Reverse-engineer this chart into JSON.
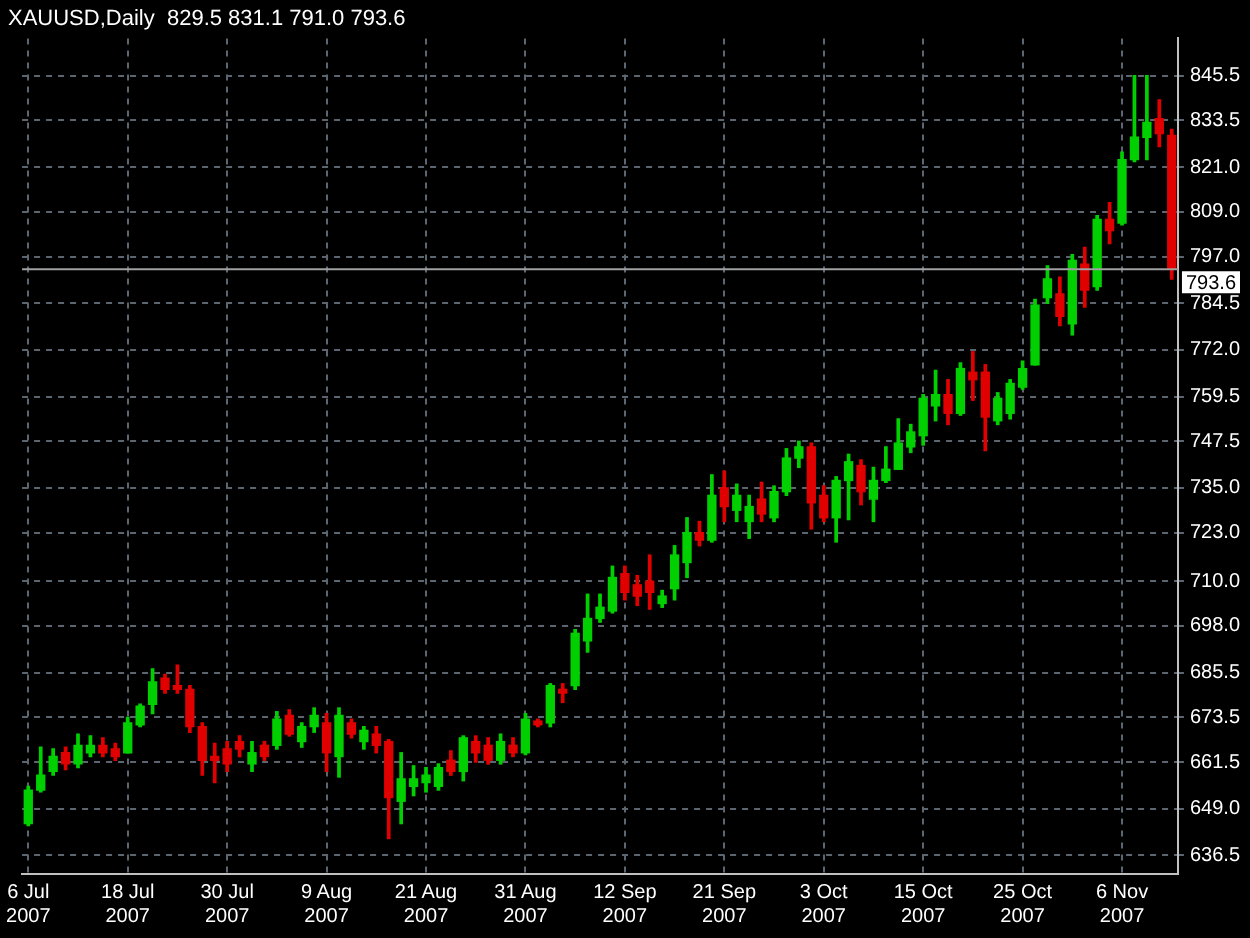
{
  "chart_data": {
    "type": "candlestick",
    "title": "XAUUSD,Daily  829.5 831.1 791.0 793.6",
    "categories": [
      "6 Jul 2007",
      null,
      null,
      null,
      null,
      null,
      null,
      null,
      "18 Jul 2007",
      null,
      null,
      null,
      null,
      null,
      null,
      null,
      "30 Jul 2007",
      null,
      null,
      null,
      null,
      null,
      null,
      null,
      "9 Aug 2007",
      null,
      null,
      null,
      null,
      null,
      null,
      null,
      "21 Aug 2007",
      null,
      null,
      null,
      null,
      null,
      null,
      null,
      "31 Aug 2007",
      null,
      null,
      null,
      null,
      null,
      null,
      null,
      "12 Sep 2007",
      null,
      null,
      null,
      null,
      null,
      null,
      null,
      "21 Sep 2007",
      null,
      null,
      null,
      null,
      null,
      null,
      null,
      "3 Oct 2007",
      null,
      null,
      null,
      null,
      null,
      null,
      null,
      "15 Oct 2007",
      null,
      null,
      null,
      null,
      null,
      null,
      null,
      "25 Oct 2007",
      null,
      null,
      null,
      null,
      null,
      null,
      null,
      "6 Nov 2007",
      null,
      null,
      null,
      null
    ],
    "ohlc": [
      [
        645,
        655,
        644.5,
        654
      ],
      [
        654,
        665.5,
        653.5,
        658
      ],
      [
        659,
        665,
        658,
        663
      ],
      [
        664,
        665.5,
        659.5,
        661
      ],
      [
        661,
        669,
        660,
        666
      ],
      [
        664,
        668.5,
        663,
        666
      ],
      [
        666,
        668,
        663,
        664
      ],
      [
        665,
        666.5,
        662,
        663
      ],
      [
        664,
        673.5,
        664,
        672
      ],
      [
        671.5,
        677,
        671,
        676.5
      ],
      [
        677,
        686.5,
        674.5,
        683
      ],
      [
        684,
        685,
        680,
        681
      ],
      [
        682,
        687.5,
        680,
        681
      ],
      [
        681,
        682,
        669.5,
        671
      ],
      [
        671,
        672,
        658,
        662
      ],
      [
        663,
        666.5,
        656,
        662
      ],
      [
        665,
        667,
        659,
        661
      ],
      [
        667,
        668.5,
        663,
        665
      ],
      [
        661,
        667,
        659,
        664
      ],
      [
        666,
        667,
        662,
        663
      ],
      [
        666,
        675,
        665,
        673
      ],
      [
        674,
        675.5,
        668.5,
        669
      ],
      [
        667,
        672,
        665.5,
        671
      ],
      [
        671,
        676,
        669.5,
        674
      ],
      [
        672,
        674.5,
        659,
        664
      ],
      [
        663,
        676,
        657.5,
        674
      ],
      [
        672,
        673,
        668,
        669
      ],
      [
        667,
        671,
        665,
        670
      ],
      [
        669,
        671,
        664,
        666
      ],
      [
        667,
        667.5,
        641,
        652
      ],
      [
        651,
        664,
        645,
        657
      ],
      [
        655,
        660.5,
        652.5,
        657
      ],
      [
        656,
        660,
        653.5,
        658
      ],
      [
        655,
        661,
        654,
        660
      ],
      [
        662,
        664.5,
        658,
        659
      ],
      [
        659,
        668.5,
        656.5,
        668
      ],
      [
        667,
        668.5,
        661.5,
        664
      ],
      [
        666,
        668,
        661,
        662
      ],
      [
        662,
        669,
        661,
        667
      ],
      [
        666,
        668,
        663,
        664
      ],
      [
        664,
        674.5,
        663.5,
        673
      ],
      [
        672.5,
        673,
        671,
        671.5
      ],
      [
        672,
        682.5,
        671,
        682
      ],
      [
        681,
        682.5,
        677.5,
        680
      ],
      [
        682,
        697,
        681,
        696
      ],
      [
        694,
        706.5,
        691,
        700
      ],
      [
        700,
        706.5,
        699,
        703
      ],
      [
        702,
        714,
        701.5,
        711
      ],
      [
        712,
        714,
        705,
        707
      ],
      [
        709,
        711.5,
        703.5,
        706
      ],
      [
        710,
        717,
        702.5,
        707
      ],
      [
        704,
        707.5,
        703,
        706
      ],
      [
        708,
        719.5,
        705,
        717
      ],
      [
        715,
        727,
        711,
        723
      ],
      [
        723,
        726,
        719.5,
        721
      ],
      [
        721,
        738.5,
        720.5,
        733
      ],
      [
        735,
        739.5,
        726,
        730
      ],
      [
        729,
        736,
        726,
        733
      ],
      [
        726,
        733,
        721.5,
        730
      ],
      [
        732,
        736.5,
        726,
        728
      ],
      [
        727,
        735.5,
        726,
        734
      ],
      [
        734,
        745.5,
        733,
        743
      ],
      [
        743,
        747.5,
        740.5,
        746
      ],
      [
        746,
        747,
        724,
        731
      ],
      [
        733,
        735.5,
        726,
        727
      ],
      [
        727,
        738,
        720.5,
        737
      ],
      [
        737,
        744,
        726.5,
        742
      ],
      [
        741,
        742.5,
        730.5,
        734
      ],
      [
        732,
        740.5,
        726,
        737
      ],
      [
        737,
        746,
        736.5,
        740
      ],
      [
        740,
        753.5,
        740,
        747
      ],
      [
        746,
        752,
        744.5,
        750
      ],
      [
        749,
        760,
        746.5,
        759
      ],
      [
        757,
        766.5,
        753,
        760
      ],
      [
        760,
        764,
        752,
        755
      ],
      [
        755,
        768.5,
        754.5,
        767
      ],
      [
        766,
        771.5,
        758.5,
        764
      ],
      [
        766,
        768,
        745,
        754
      ],
      [
        753,
        760.5,
        752,
        759
      ],
      [
        755,
        764,
        753.5,
        763
      ],
      [
        762,
        769,
        761.5,
        767
      ],
      [
        768,
        785.5,
        768,
        784
      ],
      [
        786,
        794.5,
        784.5,
        791
      ],
      [
        787,
        791.5,
        778.5,
        781
      ],
      [
        779,
        797.5,
        776,
        796
      ],
      [
        795,
        799.5,
        783.5,
        788
      ],
      [
        789,
        808,
        788,
        807
      ],
      [
        807,
        811.5,
        800.5,
        804
      ],
      [
        806,
        825,
        805.5,
        823
      ],
      [
        823,
        845.5,
        822.5,
        829
      ],
      [
        829,
        845.5,
        823,
        833
      ],
      [
        834,
        839,
        826.5,
        830
      ],
      [
        829.5,
        831.1,
        791.0,
        793.6
      ]
    ],
    "colors": [
      "#00d000",
      "#00d000",
      "#00d000",
      "#e00000",
      "#00d000",
      "#00d000",
      "#e00000",
      "#e00000",
      "#00d000",
      "#00d000",
      "#00d000",
      "#e00000",
      "#e00000",
      "#e00000",
      "#e00000",
      "#e00000",
      "#e00000",
      "#e00000",
      "#00d000",
      "#e00000",
      "#00d000",
      "#e00000",
      "#00d000",
      "#00d000",
      "#e00000",
      "#00d000",
      "#e00000",
      "#00d000",
      "#e00000",
      "#e00000",
      "#00d000",
      "#00d000",
      "#00d000",
      "#00d000",
      "#e00000",
      "#00d000",
      "#e00000",
      "#e00000",
      "#00d000",
      "#e00000",
      "#00d000",
      "#e00000",
      "#00d000",
      "#e00000",
      "#00d000",
      "#00d000",
      "#00d000",
      "#00d000",
      "#e00000",
      "#e00000",
      "#e00000",
      "#00d000",
      "#00d000",
      "#00d000",
      "#e00000",
      "#00d000",
      "#e00000",
      "#00d000",
      "#00d000",
      "#e00000",
      "#00d000",
      "#00d000",
      "#00d000",
      "#e00000",
      "#e00000",
      "#00d000",
      "#00d000",
      "#e00000",
      "#00d000",
      "#00d000",
      "#00d000",
      "#00d000",
      "#00d000",
      "#00d000",
      "#e00000",
      "#00d000",
      "#e00000",
      "#e00000",
      "#00d000",
      "#00d000",
      "#00d000",
      "#00d000",
      "#00d000",
      "#e00000",
      "#00d000",
      "#e00000",
      "#00d000",
      "#e00000",
      "#00d000",
      "#00d000",
      "#00d000",
      "#e00000",
      "#e00000"
    ],
    "ylim": [
      631.5,
      855.5
    ],
    "yticks": [
      636.5,
      {
        "value": 649,
        "label": "649.0"
      },
      661.5,
      673.5,
      685.5,
      {
        "value": 698,
        "label": "698.0"
      },
      {
        "value": 710,
        "label": "710.0"
      },
      {
        "value": 723,
        "label": "723.0"
      },
      {
        "value": 735,
        "label": "735.0"
      },
      747.5,
      759.5,
      {
        "value": 772,
        "label": "772.0"
      },
      784.5,
      {
        "value": 797,
        "label": "797.0"
      },
      {
        "value": 809,
        "label": "809.0"
      },
      {
        "value": 821,
        "label": "821.0"
      },
      833.5,
      845.5
    ],
    "ref_lines": [
      {
        "axis": "y",
        "value": 793.6,
        "label": "793.6",
        "color": "#a0a0a0"
      }
    ],
    "grid": true,
    "legend": false
  }
}
